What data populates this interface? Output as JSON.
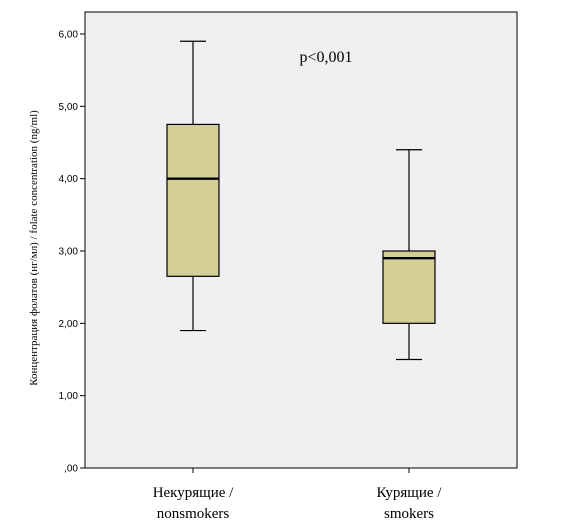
{
  "chart_data": {
    "type": "box",
    "ylabel": "Концентрация фолатов (нг/мл) / folate concentration (ng/ml)",
    "ylim": [
      0,
      6
    ],
    "yticks": [
      0,
      1,
      2,
      3,
      4,
      5,
      6
    ],
    "ytick_labels": [
      ",00",
      "1,00",
      "2,00",
      "3,00",
      "4,00",
      "5,00",
      "6,00"
    ],
    "annotation": "p<0,001",
    "grid": false,
    "box_color": "#d4ce96",
    "plot_bg": "#f0f0f0",
    "categories": [
      {
        "line1": "Некурящие /",
        "line2": "nonsmokers",
        "min": 1.9,
        "q1": 2.65,
        "median": 4.0,
        "q3": 4.75,
        "max": 5.9
      },
      {
        "line1": "Курящие /",
        "line2": "smokers",
        "min": 1.5,
        "q1": 2.0,
        "median": 2.9,
        "q3": 3.0,
        "max": 4.4
      }
    ]
  }
}
